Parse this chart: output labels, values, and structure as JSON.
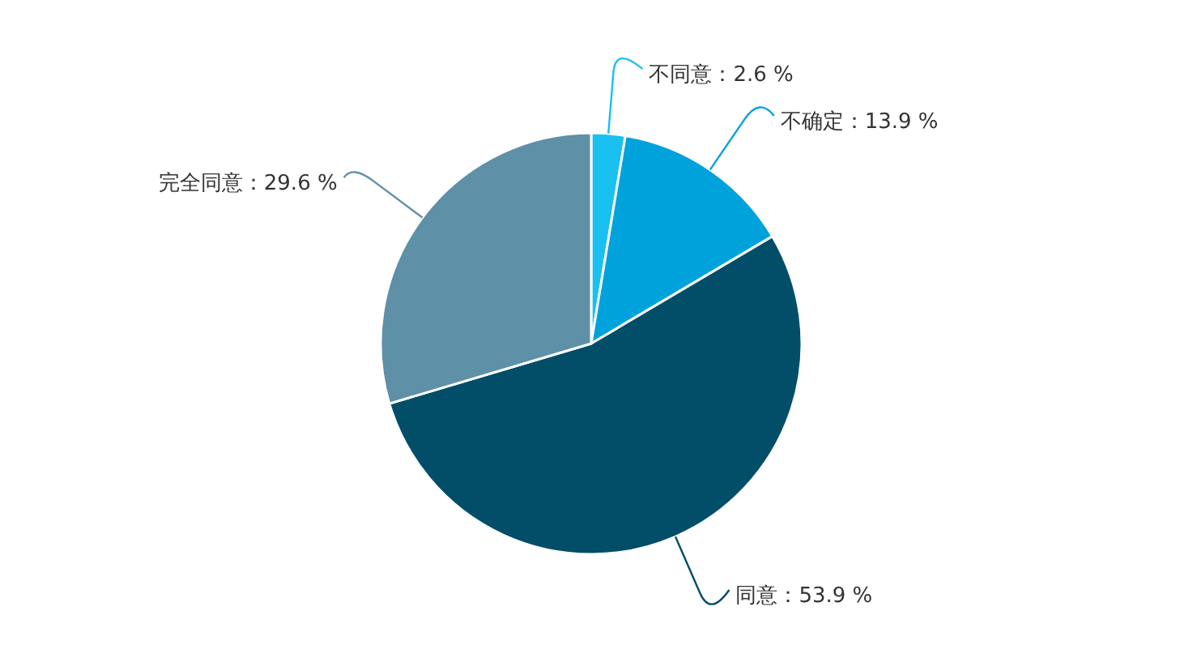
{
  "chart_data": {
    "type": "pie",
    "categories": [
      "不同意",
      "不确定",
      "同意",
      "完全同意"
    ],
    "values": [
      2.6,
      13.9,
      53.9,
      29.6
    ],
    "value_labels": [
      "2.6 %",
      "13.9 %",
      "53.9 %",
      "29.6 %"
    ],
    "colors": [
      "#1ac0f0",
      "#00a2dc",
      "#024e68",
      "#5e90a8"
    ],
    "legend": false
  }
}
